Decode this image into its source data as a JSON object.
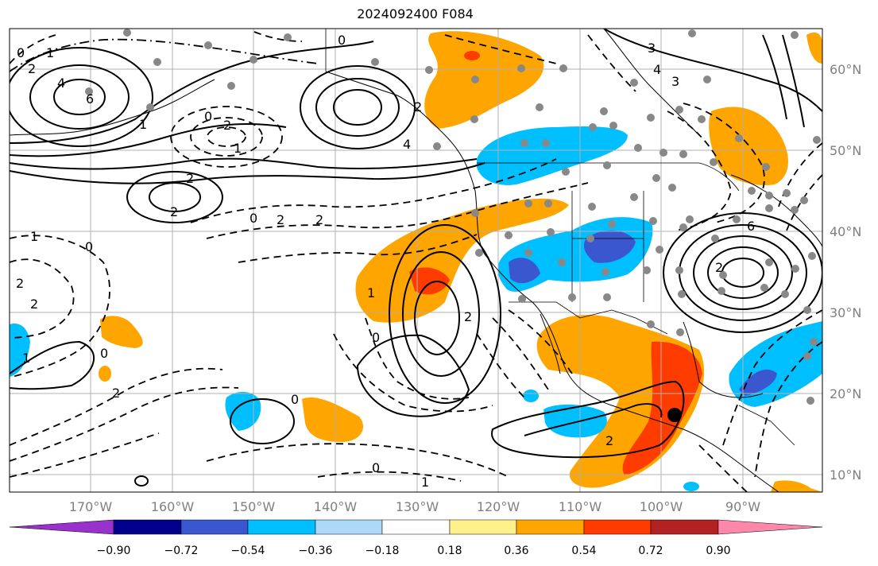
{
  "title": "2024092400 F084",
  "lat_labels": [
    "60°N",
    "50°N",
    "40°N",
    "30°N",
    "20°N",
    "10°N"
  ],
  "lon_labels": [
    "170°W",
    "160°W",
    "150°W",
    "140°W",
    "130°W",
    "120°W",
    "110°W",
    "100°W",
    "90°W"
  ],
  "colorbar": {
    "ticks": [
      "−0.90",
      "−0.72",
      "−0.54",
      "−0.36",
      "−0.18",
      "0.18",
      "0.36",
      "0.54",
      "0.72",
      "0.90"
    ],
    "colors": [
      "#9932cc",
      "#00008b",
      "#3a57d0",
      "#00bfff",
      "#add8f8",
      "#ffffff",
      "#fff08c",
      "#ffa500",
      "#ff3c00",
      "#b22222",
      "#ff88aa"
    ]
  },
  "contour_labels": [
    "0",
    "1",
    "2",
    "4",
    "6",
    "0",
    "2",
    "4",
    "1",
    "0",
    "2",
    "1",
    "3",
    "2",
    "2",
    "0",
    "2",
    "2",
    "1",
    "0",
    "2",
    "1",
    "2",
    "0",
    "1",
    "2",
    "0",
    "0",
    "2",
    "3",
    "4",
    "6",
    "2",
    "1",
    "0",
    "2"
  ],
  "colors": {
    "warm": "#ffa500",
    "warm_strong": "#ff3c00",
    "cool": "#00bfff",
    "cool_strong": "#3a57d0",
    "marker": "#888888"
  }
}
